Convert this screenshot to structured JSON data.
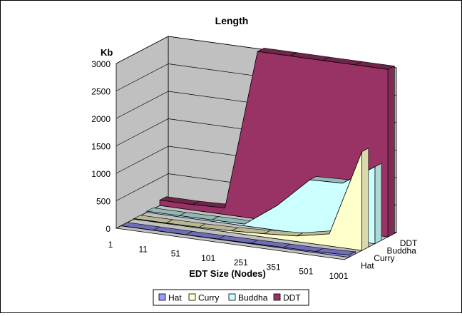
{
  "chart_data": {
    "type": "area",
    "subtype": "3d-area",
    "title": "Length",
    "ylabel": "Kb",
    "xlabel": "EDT Size (Nodes)",
    "categories": [
      "1",
      "11",
      "51",
      "101",
      "251",
      "351",
      "501",
      "1001"
    ],
    "ylim": [
      0,
      3000
    ],
    "yticks": [
      0,
      500,
      1000,
      1500,
      2000,
      2500,
      3000
    ],
    "grid": true,
    "legend_position": "bottom",
    "series": [
      {
        "name": "Hat",
        "color": "#9999ff",
        "values": [
          2,
          2,
          3,
          5,
          10,
          15,
          20,
          40
        ]
      },
      {
        "name": "Curry",
        "color": "#ffffcc",
        "values": [
          10,
          10,
          15,
          30,
          60,
          100,
          220,
          1800
        ]
      },
      {
        "name": "Buddha",
        "color": "#ccffff",
        "values": [
          20,
          20,
          25,
          30,
          450,
          1000,
          1020,
          1400
        ]
      },
      {
        "name": "DDT",
        "color": "#993366",
        "values": [
          100,
          100,
          120,
          3050,
          3050,
          3050,
          3050,
          3050
        ]
      }
    ]
  }
}
